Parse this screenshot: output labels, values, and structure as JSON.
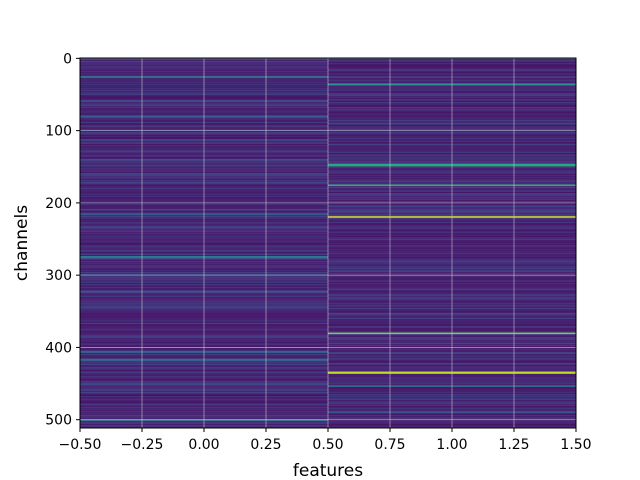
{
  "chart_data": {
    "type": "heatmap",
    "title": "",
    "xlabel": "features",
    "ylabel": "channels",
    "xlim": [
      -0.5,
      1.5
    ],
    "ylim": [
      511.5,
      -0.5
    ],
    "grid": true,
    "colormap": "viridis",
    "columns": [
      0,
      1
    ],
    "n_rows": 512,
    "x_ticks": [
      "−0.50",
      "−0.25",
      "0.00",
      "0.25",
      "0.50",
      "0.75",
      "1.00",
      "1.25",
      "1.50"
    ],
    "x_tick_values": [
      -0.5,
      -0.25,
      0,
      0.25,
      0.5,
      0.75,
      1.0,
      1.25,
      1.5
    ],
    "y_ticks": [
      "0",
      "100",
      "200",
      "300",
      "400",
      "500"
    ],
    "y_tick_values": [
      0,
      100,
      200,
      300,
      400,
      500
    ],
    "background_intensity": 0.1,
    "highlights": [
      {
        "column": 0,
        "rows": [
          [
            25,
            27,
            0.35
          ],
          [
            80,
            81,
            0.3
          ],
          [
            140,
            141,
            0.25
          ],
          [
            215,
            216,
            0.3
          ],
          [
            274,
            276,
            0.4
          ],
          [
            322,
            323,
            0.28
          ],
          [
            405,
            407,
            0.32
          ],
          [
            416,
            418,
            0.35
          ],
          [
            500,
            501,
            0.45
          ]
        ]
      },
      {
        "column": 1,
        "rows": [
          [
            35,
            37,
            0.5
          ],
          [
            146,
            149,
            0.6
          ],
          [
            175,
            176,
            0.65
          ],
          [
            219,
            220,
            0.95
          ],
          [
            380,
            381,
            0.8
          ],
          [
            434,
            436,
            0.9
          ],
          [
            453,
            454,
            0.4
          ],
          [
            489,
            490,
            0.3
          ]
        ]
      }
    ]
  }
}
